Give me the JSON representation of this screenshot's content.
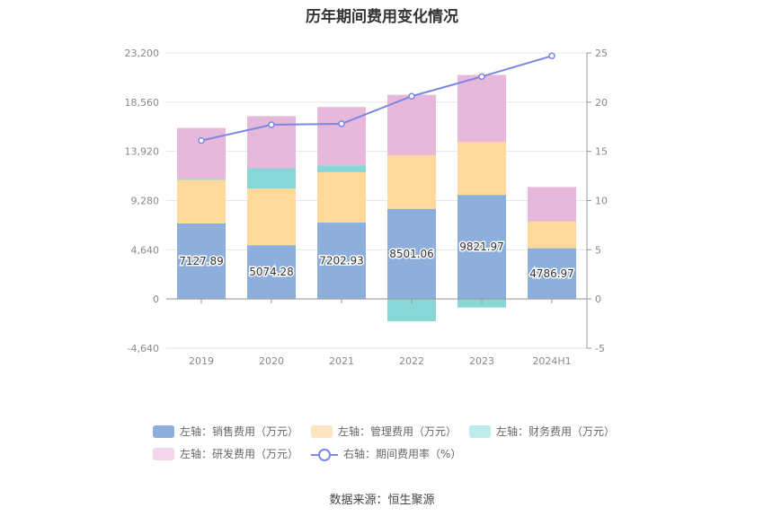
{
  "chart_data": {
    "type": "bar",
    "title": "历年期间费用变化情况",
    "categories": [
      "2019",
      "2020",
      "2021",
      "2022",
      "2023",
      "2024H1"
    ],
    "left_axis": {
      "ticks": [
        "23,200",
        "18,560",
        "13,920",
        "9,280",
        "4,640",
        "0",
        "-4,640"
      ],
      "ylim": [
        -4640,
        23200
      ]
    },
    "right_axis": {
      "ticks": [
        "25",
        "20",
        "15",
        "10",
        "5",
        "0",
        "-5"
      ],
      "ylim": [
        -5,
        25
      ]
    },
    "series": [
      {
        "name": "左轴：销售费用（万元）",
        "color": "#8eaedb",
        "values": [
          7127.89,
          5074.28,
          7202.93,
          8501.06,
          9821.97,
          4786.97
        ],
        "labels": [
          "7127.89",
          "5074.28",
          "7202.93",
          "8501.06",
          "9821.97",
          "4786.97"
        ]
      },
      {
        "name": "左轴：管理费用（万元）",
        "color": "#fed99a",
        "values": [
          4100,
          5330,
          4750,
          5050,
          5000,
          2530
        ]
      },
      {
        "name": "左轴：财务费用（万元）",
        "color": "#88d6d6",
        "values": [
          100,
          1920,
          650,
          -2100,
          -800,
          0
        ]
      },
      {
        "name": "左轴：研发费用（万元）",
        "color": "#e6b8da",
        "values": [
          4800,
          4920,
          5500,
          5700,
          6300,
          3240
        ]
      }
    ],
    "line": {
      "name": "右轴：期间费用率（%）",
      "color": "#7b86e6",
      "values": [
        16.1,
        17.7,
        17.8,
        20.6,
        22.6,
        24.7
      ]
    },
    "legend_position": "bottom"
  },
  "legend_colors": {
    "sales": "#8eaedb",
    "admin": "#fde5c1",
    "finance": "#bdeaea",
    "rd": "#f3d6ea",
    "rate": "#7b86e6"
  },
  "source": "数据来源：恒生聚源"
}
